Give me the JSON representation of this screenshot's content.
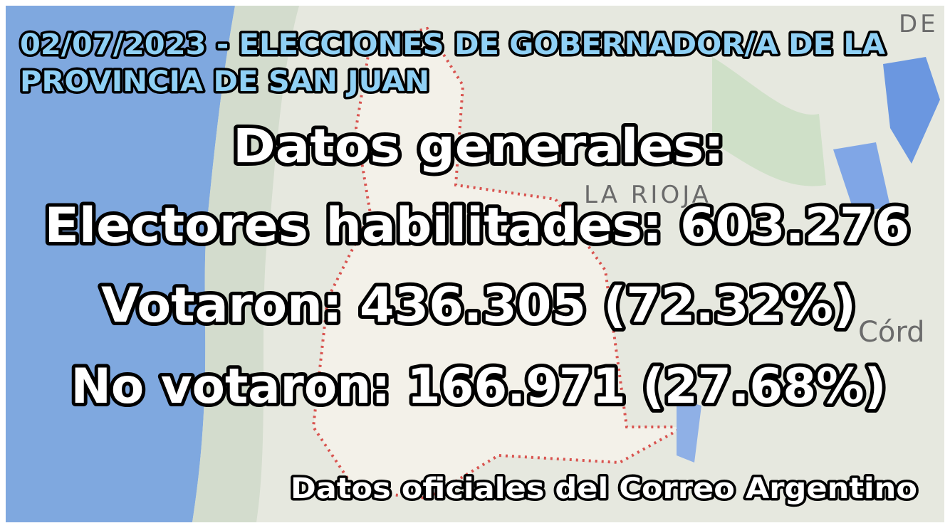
{
  "header": {
    "lines": [
      "02/07/2023 - ELECCIONES DE GOBERNADOR/A DE LA",
      "PROVINCIA DE SAN JUAN"
    ]
  },
  "body": {
    "lines": [
      "Datos generales:",
      "Electores habilitades: 603.276",
      "Votaron: 436.305 (72.32%)",
      "No votaron: 166.971 (27.68%)"
    ]
  },
  "footer": {
    "source": "Datos oficiales del Correo Argentino"
  },
  "map_labels": [
    "LA RIOJA",
    "Córd",
    "DE"
  ]
}
